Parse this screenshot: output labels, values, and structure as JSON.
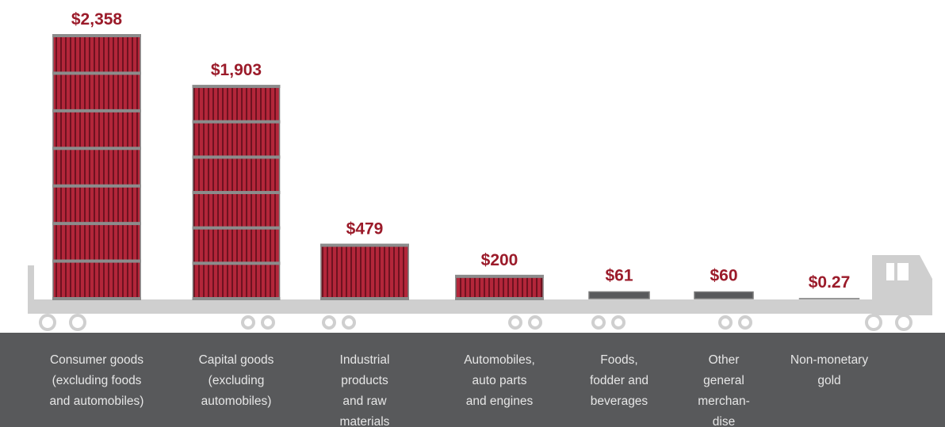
{
  "chart_data": {
    "type": "bar",
    "categories": [
      "Consumer goods\n(excluding foods\nand automobiles)",
      "Capital goods\n(excluding\nautomobiles)",
      "Industrial\nproducts\nand raw\nmaterials",
      "Automobiles,\nauto parts\nand engines",
      "Foods,\nfodder and\nbeverages",
      "Other\ngeneral\nmerchan-\ndise",
      "Non-monetary\ngold"
    ],
    "values": [
      2358,
      1903,
      479,
      200,
      61,
      60,
      0.27
    ],
    "value_labels": [
      "$2,358",
      "$1,903",
      "$479",
      "$200",
      "$61",
      "$60",
      "$0.27"
    ],
    "color": "#b3263a"
  }
}
